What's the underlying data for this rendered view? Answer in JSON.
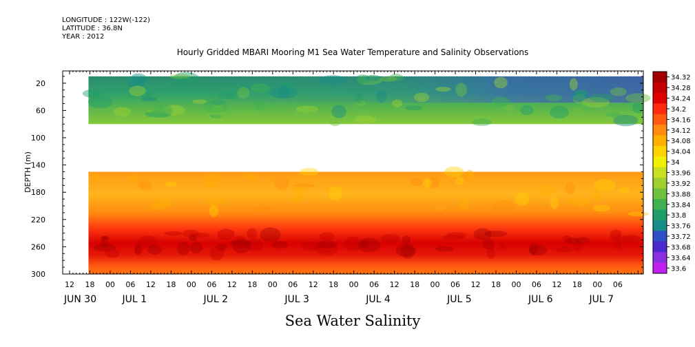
{
  "meta": {
    "longitude": "LONGITUDE : 122W(-122)",
    "latitude": "LATITUDE : 36.8N",
    "year": "YEAR : 2012"
  },
  "chart_data": {
    "type": "heatmap",
    "title": "Hourly Gridded MBARI Mooring M1 Sea Water Temperature and Salinity Observations",
    "subtitle": "Sea Water Salinity",
    "ylabel": "DEPTH (m)",
    "ylim": [
      300,
      2
    ],
    "y_ticks": [
      20,
      60,
      100,
      140,
      180,
      220,
      260,
      300
    ],
    "x_hour_ticks": [
      "12",
      "18",
      "00",
      "06",
      "12",
      "18",
      "00",
      "06",
      "12",
      "18",
      "00",
      "06",
      "12",
      "18",
      "00",
      "06",
      "12",
      "18",
      "00",
      "06",
      "12",
      "18",
      "00",
      "06",
      "12",
      "18",
      "00",
      "06"
    ],
    "x_day_labels": [
      "JUN 30",
      "JUL  1",
      "JUL  2",
      "JUL  3",
      "JUL  4",
      "JUL  5",
      "JUL  6",
      "JUL  7"
    ],
    "data_start": "JUN 30 18:00",
    "data_end": "JUL 7 16:00",
    "upper_layer_depth": [
      10,
      80
    ],
    "lower_layer_depth": [
      150,
      300
    ],
    "colorbar_levels": [
      "34.32",
      "34.28",
      "34.24",
      "34.2",
      "34.16",
      "34.12",
      "34.08",
      "34.04",
      "34",
      "33.96",
      "33.92",
      "33.88",
      "33.84",
      "33.8",
      "33.76",
      "33.72",
      "33.68",
      "33.64",
      "33.6"
    ],
    "colorbar_colors": [
      "#a00000",
      "#c40000",
      "#e00000",
      "#ff2a10",
      "#ff5a10",
      "#ff8c10",
      "#ffb000",
      "#ffd200",
      "#f0f000",
      "#c8e020",
      "#a0d030",
      "#70c040",
      "#40b050",
      "#1e9e6a",
      "#188c88",
      "#3050c8",
      "#4a2ad0",
      "#8a30e0",
      "#c020f0"
    ],
    "layers": [
      {
        "name": "upper",
        "dominant_range": [
          33.72,
          33.96
        ]
      },
      {
        "name": "lower",
        "dominant_range": [
          34.08,
          34.32
        ],
        "max_band_depth": 255
      }
    ]
  }
}
